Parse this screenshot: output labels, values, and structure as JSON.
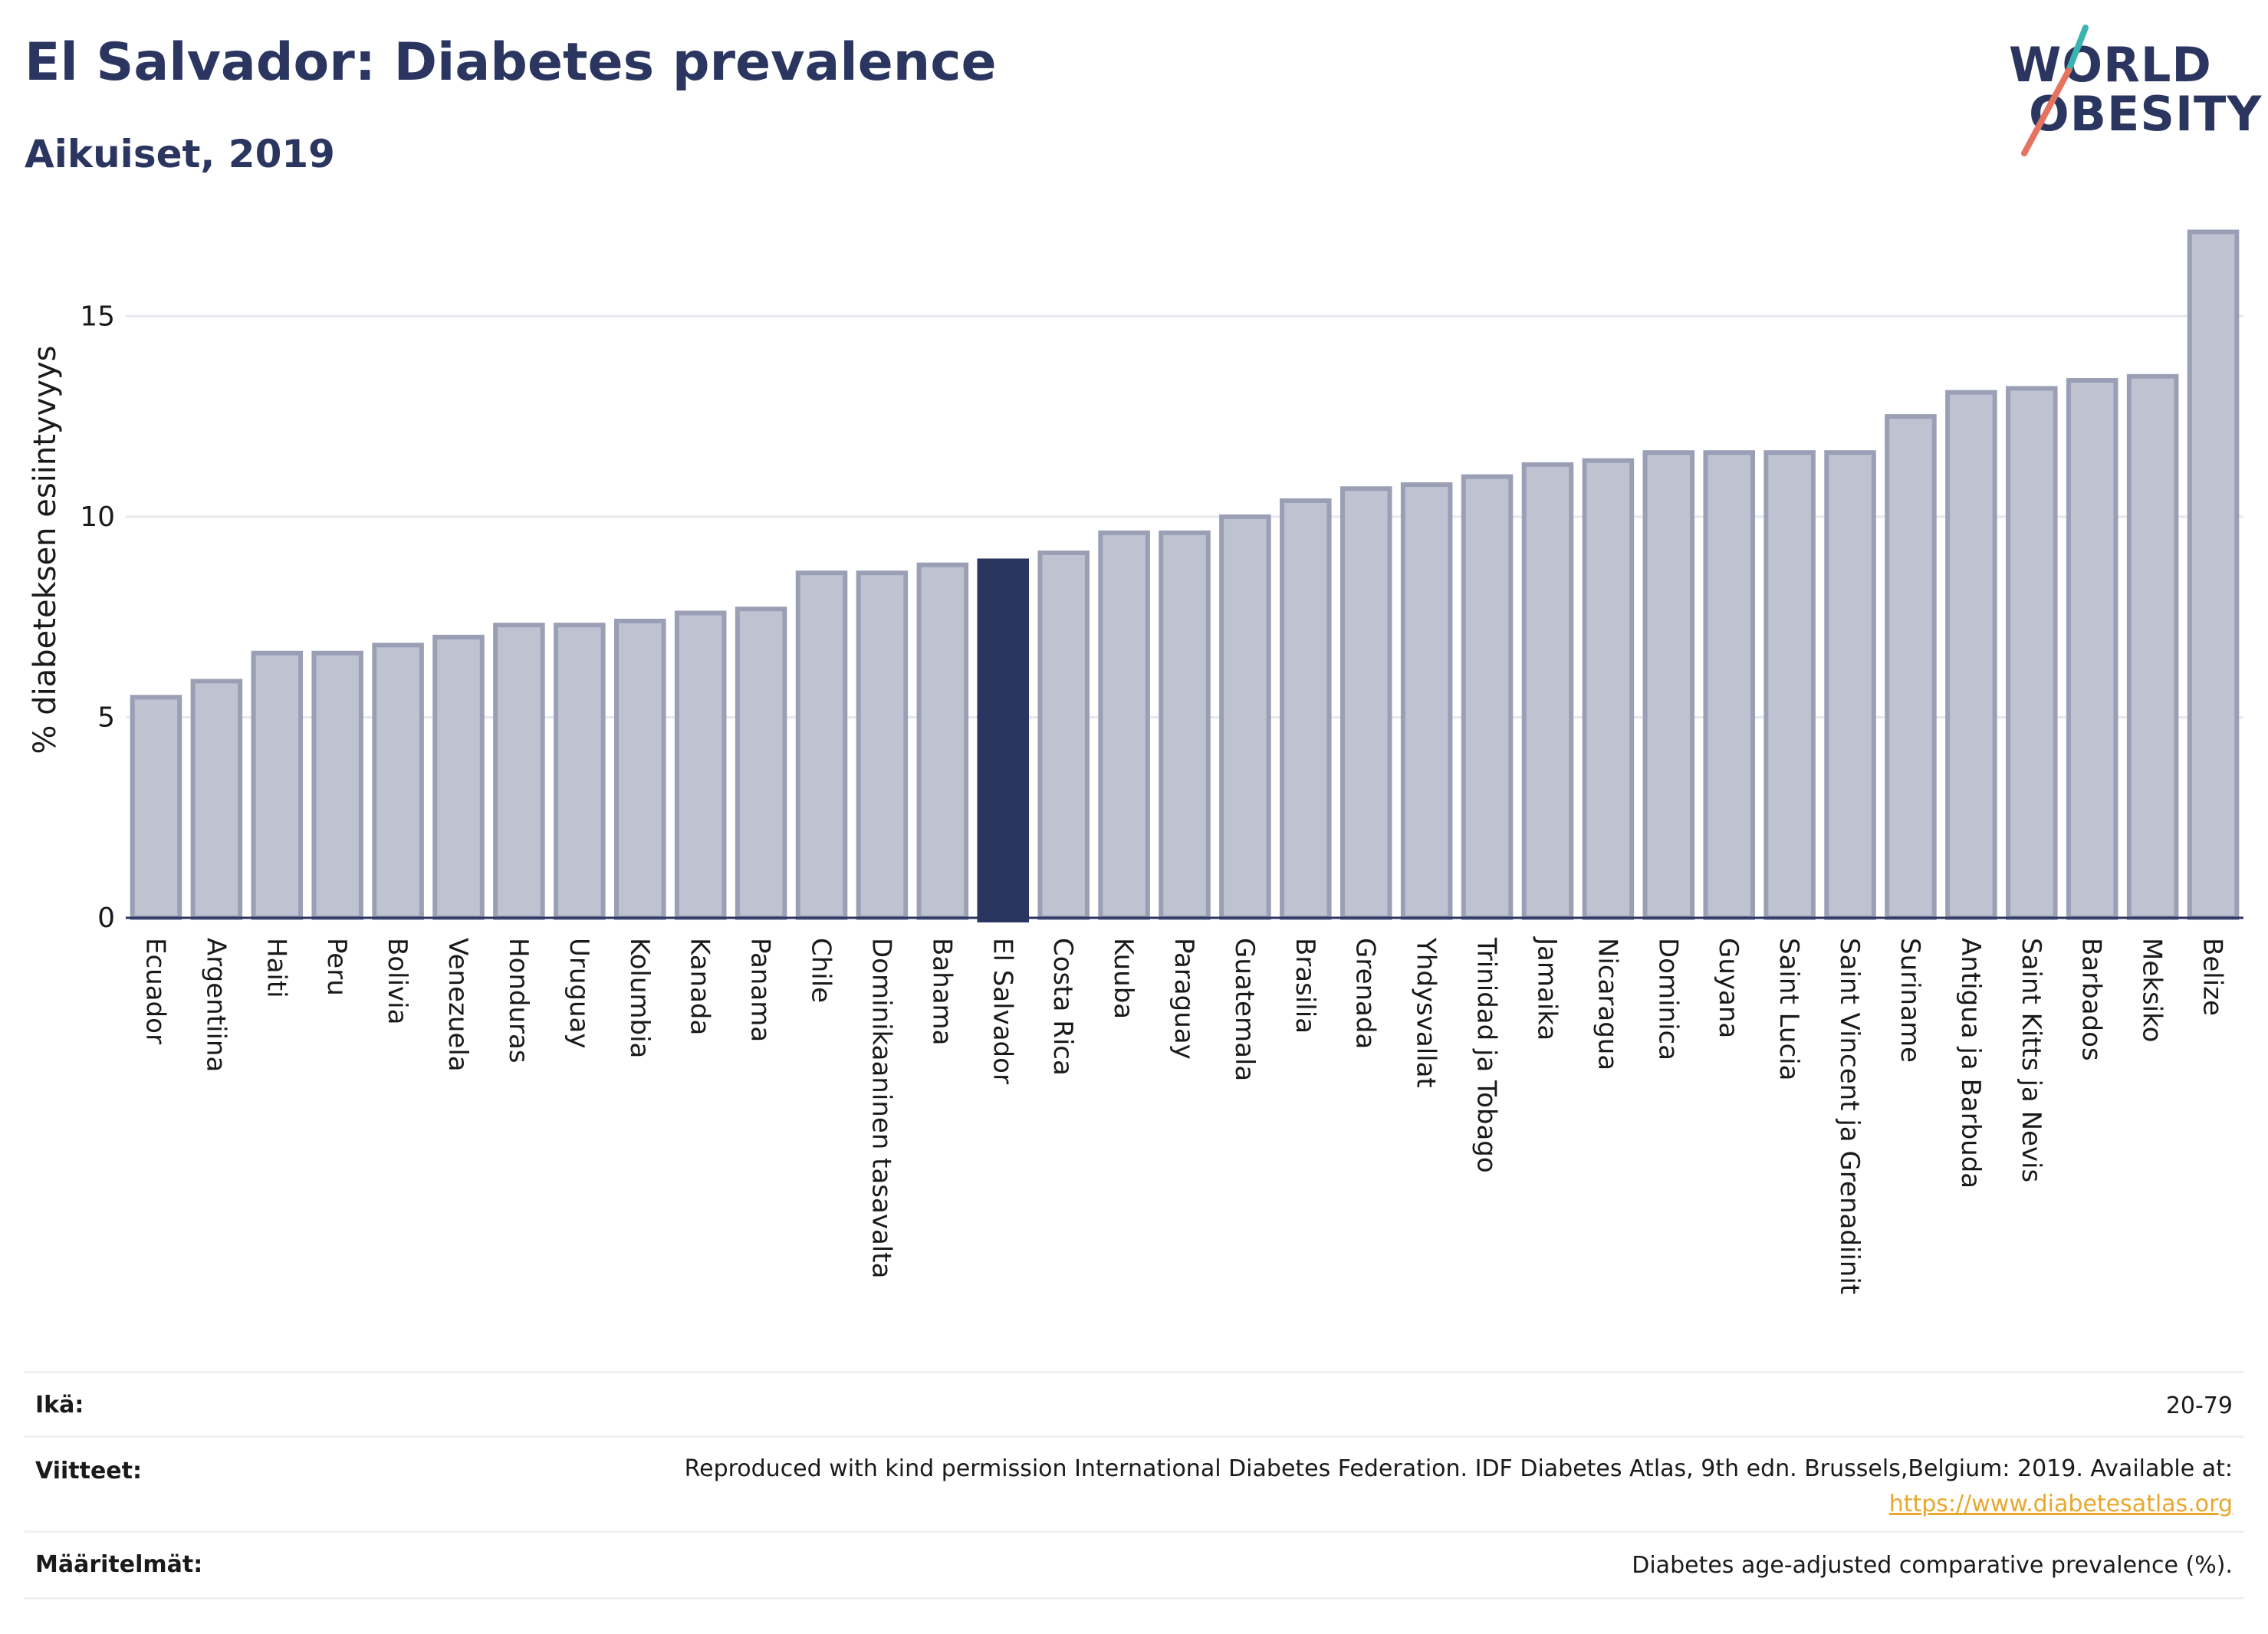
{
  "header": {
    "title": "El Salvador: Diabetes prevalence",
    "subtitle": "Aikuiset, 2019",
    "logo_line1": "WORLD",
    "logo_line2": "OBESITY"
  },
  "colors": {
    "bar": "#bfc2d0",
    "bar_stroke": "#9a9fb6",
    "highlight": "#2b3660",
    "logo_teal": "#3bb4b0",
    "logo_coral": "#e5735f",
    "link": "#e8a82e"
  },
  "chart_data": {
    "type": "bar",
    "title": "El Salvador: Diabetes prevalence",
    "subtitle": "Aikuiset, 2019",
    "ylabel": "% diabeteksen esiintyvyys",
    "xlabel": "",
    "ylim": [
      0,
      17.5
    ],
    "yticks": [
      0,
      5,
      10,
      15
    ],
    "grid": true,
    "highlight": "El Salvador",
    "categories": [
      "Ecuador",
      "Argentiina",
      "Haiti",
      "Peru",
      "Bolivia",
      "Venezuela",
      "Honduras",
      "Uruguay",
      "Kolumbia",
      "Kanada",
      "Panama",
      "Chile",
      "Dominikaaninen tasavalta",
      "Bahama",
      "El Salvador",
      "Costa Rica",
      "Kuuba",
      "Paraguay",
      "Guatemala",
      "Brasilia",
      "Grenada",
      "Yhdysvallat",
      "Trinidad ja Tobago",
      "Jamaika",
      "Nicaragua",
      "Dominica",
      "Guyana",
      "Saint Lucia",
      "Saint Vincent ja Grenadiinit",
      "Suriname",
      "Antigua ja Barbuda",
      "Saint Kitts ja Nevis",
      "Barbados",
      "Meksiko",
      "Belize"
    ],
    "values": [
      5.5,
      5.9,
      6.6,
      6.6,
      6.8,
      7.0,
      7.3,
      7.3,
      7.4,
      7.6,
      7.7,
      8.6,
      8.6,
      8.8,
      8.9,
      9.1,
      9.6,
      9.6,
      10.0,
      10.4,
      10.7,
      10.8,
      11.0,
      11.3,
      11.4,
      11.6,
      11.6,
      11.6,
      11.6,
      12.5,
      13.1,
      13.2,
      13.4,
      13.5,
      17.1
    ]
  },
  "meta": {
    "age_label": "Ikä:",
    "age_value": "20-79",
    "refs_label": "Viitteet:",
    "refs_text": "Reproduced with kind permission International Diabetes Federation. IDF Diabetes Atlas, 9th edn. Brussels,Belgium: 2019. Available at:",
    "refs_link": "https://www.diabetesatlas.org",
    "defs_label": "Määritelmät:",
    "defs_value": "Diabetes age-adjusted comparative prevalence (%)."
  }
}
